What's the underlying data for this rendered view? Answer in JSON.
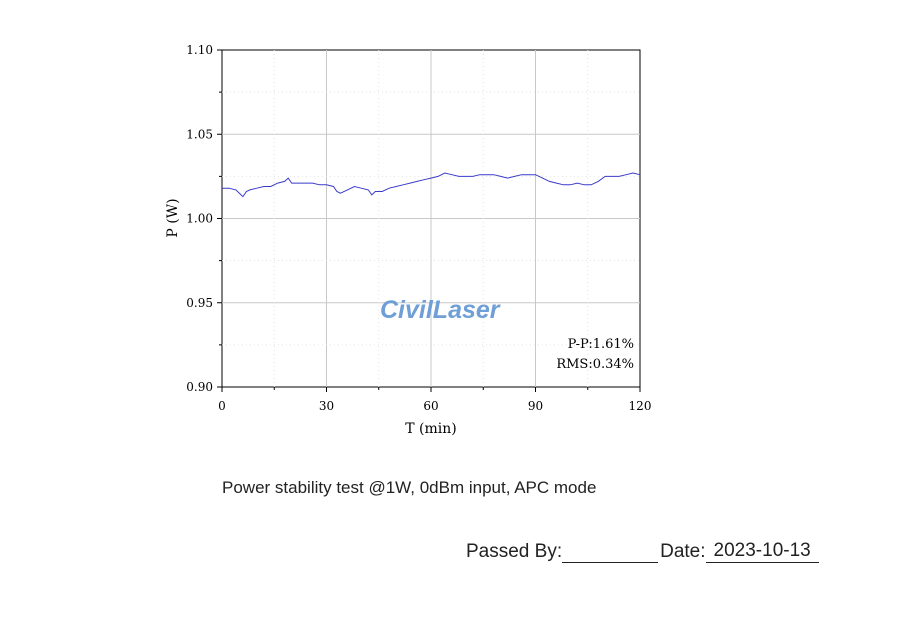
{
  "chart_data": {
    "type": "line",
    "title": "",
    "xlabel": "T (min)",
    "ylabel": "P (W)",
    "xlim": [
      0,
      120
    ],
    "ylim": [
      0.9,
      1.1
    ],
    "xticks": [
      0,
      30,
      60,
      90,
      120
    ],
    "xtick_labels": [
      "0",
      "30",
      "60",
      "90",
      "120"
    ],
    "yticks": [
      0.9,
      0.95,
      1.0,
      1.05,
      1.1
    ],
    "ytick_labels": [
      "0.90",
      "0.95",
      "1.00",
      "1.05",
      "1.10"
    ],
    "grid": true,
    "series": [
      {
        "color": "#3a3acb",
        "x": [
          0,
          2,
          4,
          5,
          6,
          7,
          8,
          10,
          12,
          14,
          16,
          18,
          19,
          20,
          22,
          24,
          26,
          28,
          30,
          32,
          33,
          34,
          36,
          38,
          40,
          42,
          43,
          44,
          46,
          48,
          50,
          52,
          54,
          56,
          58,
          60,
          62,
          64,
          66,
          68,
          70,
          72,
          74,
          76,
          78,
          80,
          82,
          84,
          86,
          88,
          90,
          92,
          94,
          96,
          98,
          100,
          102,
          104,
          106,
          108,
          110,
          112,
          114,
          116,
          118,
          120
        ],
        "y": [
          1.018,
          1.018,
          1.017,
          1.015,
          1.013,
          1.016,
          1.017,
          1.018,
          1.019,
          1.019,
          1.021,
          1.022,
          1.024,
          1.021,
          1.021,
          1.021,
          1.021,
          1.02,
          1.02,
          1.019,
          1.016,
          1.015,
          1.017,
          1.019,
          1.018,
          1.017,
          1.014,
          1.016,
          1.016,
          1.018,
          1.019,
          1.02,
          1.021,
          1.022,
          1.023,
          1.024,
          1.025,
          1.027,
          1.026,
          1.025,
          1.025,
          1.025,
          1.026,
          1.026,
          1.026,
          1.025,
          1.024,
          1.025,
          1.026,
          1.026,
          1.026,
          1.024,
          1.022,
          1.021,
          1.02,
          1.02,
          1.021,
          1.02,
          1.02,
          1.022,
          1.025,
          1.025,
          1.025,
          1.026,
          1.027,
          1.026
        ]
      }
    ],
    "annotations": [
      "P-P:1.61%",
      "RMS:0.34%"
    ]
  },
  "watermark": "CivilLaser",
  "caption": "Power stability test @1W, 0dBm input, APC mode",
  "signature": {
    "passed_by_label": "Passed  By:",
    "date_label": "Date:",
    "date_value": "2023-10-13"
  }
}
